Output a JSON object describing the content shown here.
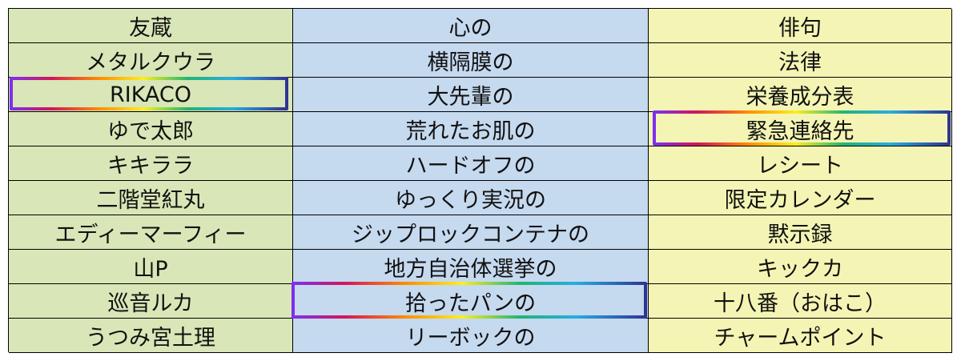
{
  "table": {
    "columns": [
      {
        "header": "友蔵",
        "items": [
          "メタルクウラ",
          "RIKACO",
          "ゆで太郎",
          "キキララ",
          "二階堂紅丸",
          "エディーマーフィー",
          "山P",
          "巡音ルカ",
          "うつみ宮土理"
        ]
      },
      {
        "header": "心の",
        "items": [
          "横隔膜の",
          "大先輩の",
          "荒れたお肌の",
          "ハードオフの",
          "ゆっくり実況の",
          "ジップロックコンテナの",
          "地方自治体選挙の",
          "拾ったパンの",
          "リーボックの"
        ]
      },
      {
        "header": "俳句",
        "items": [
          "法律",
          "栄養成分表",
          "緊急連絡先",
          "レシート",
          "限定カレンダー",
          "黙示録",
          "キックカ",
          "十八番（おはこ）",
          "チャームポイント"
        ]
      }
    ],
    "highlighted": [
      "RIKACO",
      "拾ったパンの",
      "緊急連絡先"
    ]
  }
}
